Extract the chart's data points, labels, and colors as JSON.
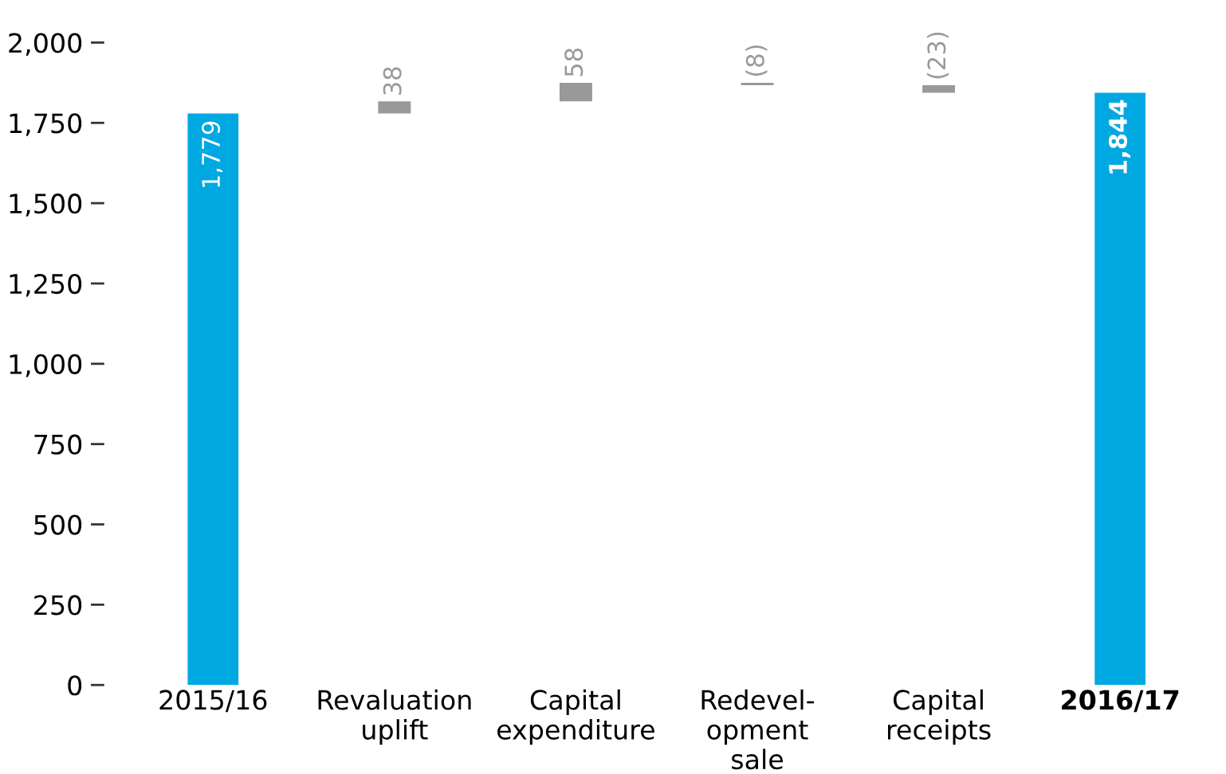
{
  "chart_data": {
    "type": "bar",
    "categories": [
      "2015/16",
      "Revaluation\nuplift",
      "Capital\nexpenditure",
      "Redevel-\nopment\nsale",
      "Capital\nreceipts",
      "2016/17"
    ],
    "values": [
      1779,
      38,
      58,
      -8,
      -23,
      1844
    ],
    "base": [
      0,
      1779,
      1817,
      1875,
      1867,
      0
    ],
    "colors": [
      "#00a8e1",
      "#999999",
      "#999999",
      "#999999",
      "#999999",
      "#00a8e1"
    ],
    "value_labels": [
      "1,779",
      "38",
      "58",
      "(8)",
      "(23)",
      "1,844"
    ],
    "ylim": [
      0,
      2000
    ],
    "yticks": [
      {
        "value": 0,
        "label": "0"
      },
      {
        "value": 250,
        "label": "250"
      },
      {
        "value": 500,
        "label": "500"
      },
      {
        "value": 750,
        "label": "750"
      },
      {
        "value": 1000,
        "label": "1,000"
      },
      {
        "value": 1250,
        "label": "1,250"
      },
      {
        "value": 1500,
        "label": "1,500"
      },
      {
        "value": 1750,
        "label": "1,750"
      },
      {
        "value": 2000,
        "label": "2,000"
      }
    ],
    "grid": false,
    "legend": false
  }
}
